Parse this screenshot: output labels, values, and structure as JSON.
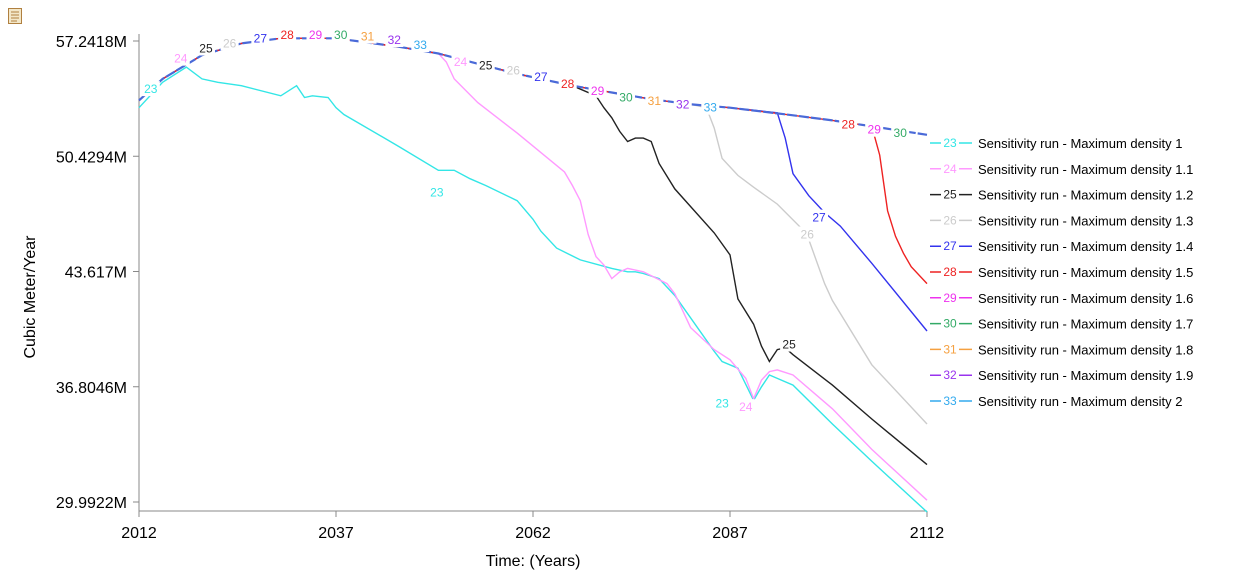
{
  "toolbar": {
    "corner_icon": "document-icon"
  },
  "chart_data": {
    "type": "line",
    "title": "",
    "xlabel": "Time: (Years)",
    "ylabel": "Cubic Meter/Year",
    "xlim": [
      2012,
      2112
    ],
    "ylim": [
      29.9922,
      57.2418
    ],
    "x_ticks": [
      "2012",
      "2037",
      "2062",
      "2087",
      "2112"
    ],
    "x_tick_values": [
      2012,
      2037,
      2062,
      2087,
      2112
    ],
    "y_ticks": [
      "57.2418M",
      "50.4294M",
      "43.617M",
      "36.8046M",
      "29.9922M"
    ],
    "y_tick_values": [
      57.2418,
      50.4294,
      43.617,
      36.8046,
      29.9922
    ],
    "grid": false,
    "legend_position": "right",
    "baseline": {
      "x": [
        2012,
        2015,
        2020,
        2025,
        2030,
        2037,
        2045,
        2050,
        2055,
        2060,
        2062,
        2067,
        2072,
        2077,
        2082,
        2087,
        2095,
        2100,
        2105,
        2112
      ],
      "y": [
        53.73,
        55.0,
        56.4,
        57.1,
        57.4,
        57.4,
        56.9,
        56.5,
        55.9,
        55.3,
        55.1,
        54.6,
        54.2,
        53.8,
        53.5,
        53.3,
        52.85,
        52.55,
        52.2,
        51.7
      ]
    },
    "series": [
      {
        "name": "Sensitivity run - Maximum density 1",
        "marker": "23",
        "color": "#33e6e6",
        "x": [
          2012,
          2015,
          2018,
          2020,
          2022,
          2025,
          2030,
          2032,
          2033,
          2034,
          2036,
          2037,
          2038,
          2045,
          2050,
          2052,
          2054,
          2056,
          2060,
          2062,
          2063,
          2065,
          2068,
          2072,
          2074,
          2075,
          2076,
          2078,
          2080,
          2085,
          2086,
          2088,
          2090,
          2091,
          2092,
          2093,
          2095,
          2100,
          2105,
          2112
        ],
        "y": [
          53.3,
          54.8,
          55.7,
          55.0,
          54.8,
          54.6,
          54.0,
          54.6,
          53.9,
          54.0,
          53.9,
          53.3,
          52.9,
          51.0,
          49.6,
          49.6,
          49.1,
          48.7,
          47.8,
          46.7,
          46.0,
          45.0,
          44.3,
          43.8,
          43.6,
          43.6,
          43.5,
          43.2,
          42.2,
          38.9,
          38.3,
          37.9,
          36.0,
          36.8,
          37.5,
          37.3,
          36.9,
          34.6,
          32.4,
          29.4
        ]
      },
      {
        "name": "Sensitivity run - Maximum density 1.1",
        "marker": "24",
        "color": "#ff99ff",
        "x": [
          2050,
          2051,
          2052,
          2055,
          2060,
          2066,
          2067,
          2068,
          2069,
          2070,
          2071,
          2072,
          2073,
          2074,
          2076,
          2079,
          2080,
          2081,
          2082,
          2085,
          2087,
          2089,
          2090,
          2091,
          2092,
          2093,
          2095,
          2100,
          2105,
          2112
        ],
        "y": [
          56.5,
          56.0,
          55.0,
          53.6,
          51.8,
          49.5,
          48.7,
          47.8,
          45.8,
          44.5,
          44.0,
          43.2,
          43.6,
          43.8,
          43.6,
          42.9,
          42.3,
          41.3,
          40.3,
          39.0,
          38.4,
          37.3,
          36.1,
          37.2,
          37.7,
          37.8,
          37.5,
          35.5,
          33.1,
          30.1
        ]
      },
      {
        "name": "Sensitivity run - Maximum density 1.2",
        "marker": "25",
        "color": "#222222",
        "x": [
          2070,
          2071,
          2072,
          2073,
          2074,
          2075,
          2076,
          2077,
          2078,
          2080,
          2085,
          2087,
          2088,
          2090,
          2091,
          2092,
          2093,
          2094,
          2095,
          2100,
          2105,
          2112
        ],
        "y": [
          54.0,
          53.3,
          52.7,
          51.9,
          51.3,
          51.5,
          51.5,
          51.3,
          50.0,
          48.5,
          45.9,
          44.6,
          42.0,
          40.5,
          39.2,
          38.3,
          39.0,
          39.1,
          38.7,
          36.9,
          34.9,
          32.2
        ]
      },
      {
        "name": "Sensitivity run - Maximum density 1.3",
        "marker": "26",
        "color": "#cccccc",
        "x": [
          2084,
          2085,
          2086,
          2088,
          2090,
          2093,
          2096,
          2097,
          2098,
          2099,
          2100,
          2105,
          2112
        ],
        "y": [
          53.3,
          52.1,
          50.3,
          49.3,
          48.6,
          47.6,
          46.2,
          45.5,
          44.2,
          42.9,
          41.9,
          38.1,
          34.6
        ]
      },
      {
        "name": "Sensitivity run - Maximum density 1.4",
        "marker": "27",
        "color": "#3333ee",
        "x": [
          2093,
          2094,
          2095,
          2097,
          2099,
          2101,
          2105,
          2112
        ],
        "y": [
          53.0,
          51.5,
          49.4,
          48.1,
          47.1,
          46.3,
          44.1,
          40.1
        ]
      },
      {
        "name": "Sensitivity run - Maximum density 1.5",
        "marker": "28",
        "color": "#ee2222",
        "x": [
          2105,
          2106,
          2107,
          2108,
          2109,
          2110,
          2112
        ],
        "y": [
          52.2,
          50.5,
          47.2,
          45.7,
          44.7,
          43.9,
          42.9
        ]
      },
      {
        "name": "Sensitivity run - Maximum density 1.6",
        "marker": "29",
        "color": "#ee33ee"
      },
      {
        "name": "Sensitivity run - Maximum density 1.7",
        "marker": "30",
        "color": "#33aa66"
      },
      {
        "name": "Sensitivity run - Maximum density 1.8",
        "marker": "31",
        "color": "#f5a040"
      },
      {
        "name": "Sensitivity run - Maximum density 1.9",
        "marker": "32",
        "color": "#9933ee"
      },
      {
        "name": "Sensitivity run - Maximum density 2",
        "marker": "33",
        "color": "#33aaee"
      }
    ],
    "annotations": [
      {
        "text": "23",
        "x": 2013.5,
        "y": 54.4
      },
      {
        "text": "24",
        "x": 2017.3,
        "y": 56.2
      },
      {
        "text": "25",
        "x": 2020.5,
        "y": 56.8
      },
      {
        "text": "26",
        "x": 2023.5,
        "y": 57.1
      },
      {
        "text": "27",
        "x": 2027.4,
        "y": 57.4
      },
      {
        "text": "28",
        "x": 2030.8,
        "y": 57.6
      },
      {
        "text": "29",
        "x": 2034.4,
        "y": 57.6
      },
      {
        "text": "30",
        "x": 2037.6,
        "y": 57.6
      },
      {
        "text": "31",
        "x": 2041.0,
        "y": 57.5
      },
      {
        "text": "32",
        "x": 2044.4,
        "y": 57.3
      },
      {
        "text": "33",
        "x": 2047.7,
        "y": 57.0
      },
      {
        "text": "25",
        "x": 2056.0,
        "y": 55.8
      },
      {
        "text": "26",
        "x": 2059.5,
        "y": 55.5
      },
      {
        "text": "27",
        "x": 2063.0,
        "y": 55.1
      },
      {
        "text": "28",
        "x": 2066.4,
        "y": 54.7
      },
      {
        "text": "29",
        "x": 2070.2,
        "y": 54.3
      },
      {
        "text": "30",
        "x": 2073.8,
        "y": 53.9
      },
      {
        "text": "31",
        "x": 2077.4,
        "y": 53.7
      },
      {
        "text": "32",
        "x": 2081.0,
        "y": 53.5
      },
      {
        "text": "33",
        "x": 2084.5,
        "y": 53.3
      },
      {
        "text": "28",
        "x": 2102.0,
        "y": 52.3
      },
      {
        "text": "29",
        "x": 2105.3,
        "y": 52.0
      },
      {
        "text": "30",
        "x": 2108.6,
        "y": 51.8
      },
      {
        "text": "24",
        "x": 2052.8,
        "y": 56.0
      },
      {
        "text": "23",
        "x": 2049.8,
        "y": 48.3
      },
      {
        "text": "25",
        "x": 2094.5,
        "y": 39.3
      },
      {
        "text": "26",
        "x": 2096.8,
        "y": 45.8
      },
      {
        "text": "27",
        "x": 2098.3,
        "y": 46.8
      },
      {
        "text": "24",
        "x": 2089.0,
        "y": 35.6
      },
      {
        "text": "23",
        "x": 2086.0,
        "y": 35.8
      }
    ]
  }
}
